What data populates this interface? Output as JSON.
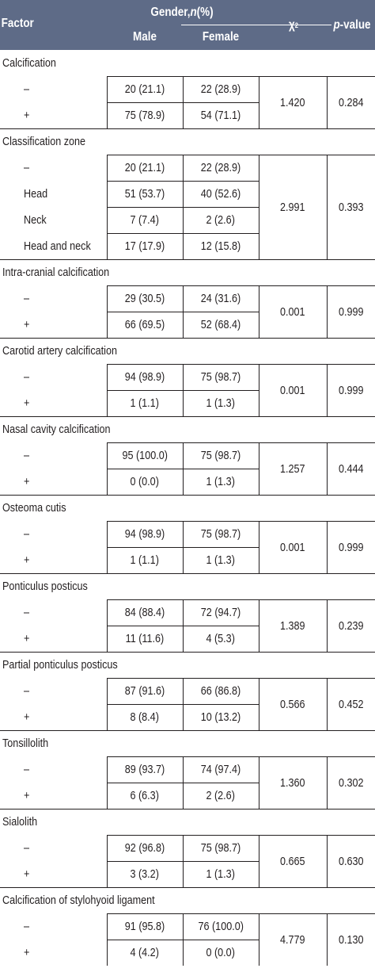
{
  "header": {
    "factor": "Factor",
    "gender_prefix": "Gender, ",
    "gender_n": "n",
    "gender_suffix": " (%)",
    "male": "Male",
    "female": "Female",
    "chi": "χ",
    "chi_sup": "2",
    "p_italic": "p",
    "p_rest": "-value"
  },
  "groups": [
    {
      "title": "Calcification",
      "chi": "1.420",
      "p": "0.284",
      "rows": [
        {
          "label": "–",
          "male": "20 (21.1)",
          "female": "22 (28.9)"
        },
        {
          "label": "+",
          "male": "75 (78.9)",
          "female": "54 (71.1)"
        }
      ]
    },
    {
      "title": "Classification zone",
      "chi": "2.991",
      "p": "0.393",
      "rows": [
        {
          "label": "–",
          "male": "20 (21.1)",
          "female": "22 (28.9)"
        },
        {
          "label": "Head",
          "male": "51 (53.7)",
          "female": "40 (52.6)"
        },
        {
          "label": "Neck",
          "male": "7 (7.4)",
          "female": "2 (2.6)"
        },
        {
          "label": "Head and neck",
          "male": "17 (17.9)",
          "female": "12 (15.8)"
        }
      ]
    },
    {
      "title": "Intra-cranial calcification",
      "chi": "0.001",
      "p": "0.999",
      "rows": [
        {
          "label": "–",
          "male": "29 (30.5)",
          "female": "24 (31.6)"
        },
        {
          "label": "+",
          "male": "66 (69.5)",
          "female": "52 (68.4)"
        }
      ]
    },
    {
      "title": "Carotid artery calcification",
      "chi": "0.001",
      "p": "0.999",
      "rows": [
        {
          "label": "–",
          "male": "94 (98.9)",
          "female": "75 (98.7)"
        },
        {
          "label": "+",
          "male": "1 (1.1)",
          "female": "1 (1.3)"
        }
      ]
    },
    {
      "title": "Nasal cavity calcification",
      "chi": "1.257",
      "p": "0.444",
      "rows": [
        {
          "label": "–",
          "male": "95 (100.0)",
          "female": "75 (98.7)"
        },
        {
          "label": "+",
          "male": "0 (0.0)",
          "female": "1 (1.3)"
        }
      ]
    },
    {
      "title": "Osteoma cutis",
      "chi": "0.001",
      "p": "0.999",
      "rows": [
        {
          "label": "–",
          "male": "94 (98.9)",
          "female": "75 (98.7)"
        },
        {
          "label": "+",
          "male": "1 (1.1)",
          "female": "1 (1.3)"
        }
      ]
    },
    {
      "title": "Ponticulus posticus",
      "chi": "1.389",
      "p": "0.239",
      "rows": [
        {
          "label": "–",
          "male": "84 (88.4)",
          "female": "72 (94.7)"
        },
        {
          "label": "+",
          "male": "11 (11.6)",
          "female": "4 (5.3)"
        }
      ]
    },
    {
      "title": "Partial ponticulus posticus",
      "chi": "0.566",
      "p": "0.452",
      "rows": [
        {
          "label": "–",
          "male": "87 (91.6)",
          "female": "66 (86.8)"
        },
        {
          "label": "+",
          "male": "8 (8.4)",
          "female": "10 (13.2)"
        }
      ]
    },
    {
      "title": "Tonsillolith",
      "chi": "1.360",
      "p": "0.302",
      "rows": [
        {
          "label": "–",
          "male": "89 (93.7)",
          "female": "74 (97.4)"
        },
        {
          "label": "+",
          "male": "6 (6.3)",
          "female": "2 (2.6)"
        }
      ]
    },
    {
      "title": "Sialolith",
      "chi": "0.665",
      "p": "0.630",
      "rows": [
        {
          "label": "–",
          "male": "92 (96.8)",
          "female": "75 (98.7)"
        },
        {
          "label": "+",
          "male": "3 (3.2)",
          "female": "1 (1.3)"
        }
      ]
    },
    {
      "title": "Calcification of stylohyoid ligament",
      "chi": "4.779",
      "p": "0.130",
      "rows": [
        {
          "label": "–",
          "male": "91 (95.8)",
          "female": "76 (100.0)"
        },
        {
          "label": "+",
          "male": "4 (4.2)",
          "female": "0 (0.0)"
        }
      ]
    }
  ]
}
